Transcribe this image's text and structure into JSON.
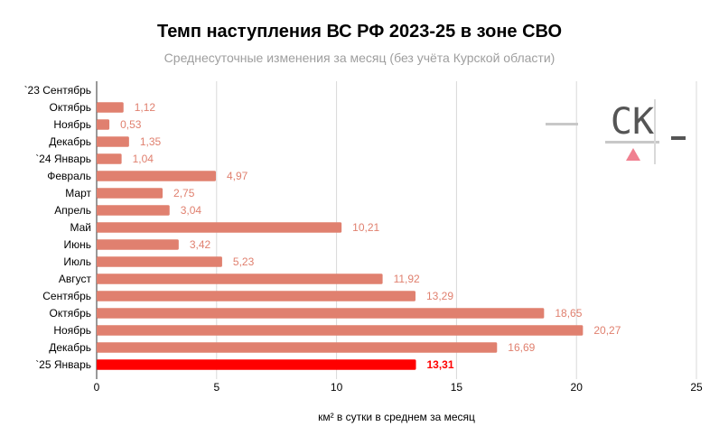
{
  "chart_data": {
    "type": "bar",
    "orientation": "horizontal",
    "title": "Темп наступления ВС РФ 2023-25 в зоне СВО",
    "subtitle": "Среднесуточные изменения за месяц (без учёта Курской области)",
    "xlabel": "км² в сутки в среднем за месяц",
    "ylabel": "",
    "xlim": [
      0,
      25
    ],
    "xticks": [
      "0",
      "5",
      "10",
      "15",
      "20",
      "25"
    ],
    "grid": "vertical",
    "legend": "none",
    "categories": [
      "`23 Сентябрь",
      "Октябрь",
      "Ноябрь",
      "Декабрь",
      "`24 Январь",
      "Февраль",
      "Март",
      "Апрель",
      "Май",
      "Июнь",
      "Июль",
      "Август",
      "Сентябрь",
      "Октябрь",
      "Ноябрь",
      "Декабрь",
      "`25 Январь"
    ],
    "values": [
      null,
      1.12,
      0.53,
      1.35,
      1.04,
      4.97,
      2.75,
      3.04,
      10.21,
      3.42,
      5.23,
      11.92,
      13.29,
      18.65,
      20.27,
      16.69,
      13.31
    ],
    "labels": [
      "",
      "1,12",
      "0,53",
      "1,35",
      "1,04",
      "4,97",
      "2,75",
      "3,04",
      "10,21",
      "3,42",
      "5,23",
      "11,92",
      "13,29",
      "18,65",
      "20,27",
      "16,69",
      "13,31"
    ],
    "highlight_index": 16,
    "colors": {
      "bar": "#e0806f",
      "highlight_bar": "#ff0000",
      "label": "#e0806f",
      "highlight_label": "#ff0000",
      "grid": "#d9d9d9",
      "axis_text": "#000000"
    }
  },
  "logo": {
    "text": "СК",
    "colors": {
      "dash": "#c8c8c8",
      "text": "#555555",
      "triangle": "#f08090"
    }
  }
}
